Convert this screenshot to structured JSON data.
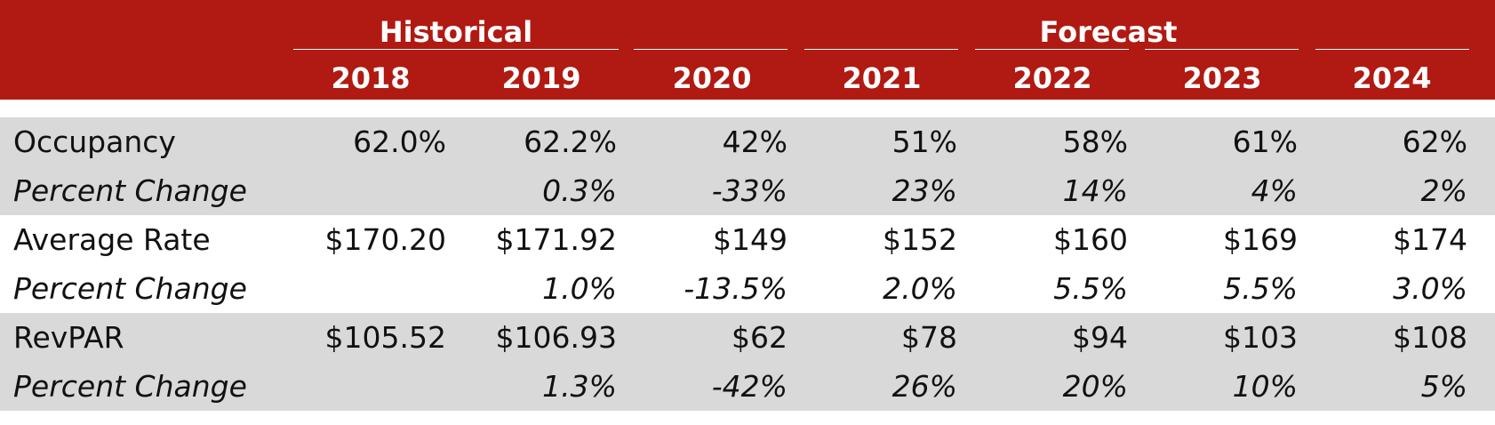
{
  "header": {
    "groups": {
      "historical": "Historical",
      "forecast": "Forecast"
    },
    "years": [
      "2018",
      "2019",
      "2020",
      "2021",
      "2022",
      "2023",
      "2024"
    ]
  },
  "rows": [
    {
      "label": "Occupancy",
      "italic": false,
      "shaded": true,
      "values": [
        "62.0%",
        "62.2%",
        "42%",
        "51%",
        "58%",
        "61%",
        "62%"
      ]
    },
    {
      "label": "Percent Change",
      "italic": true,
      "shaded": true,
      "values": [
        "",
        "0.3%",
        "-33%",
        "23%",
        "14%",
        "4%",
        "2%"
      ]
    },
    {
      "label": "Average Rate",
      "italic": false,
      "shaded": false,
      "values": [
        "$170.20",
        "$171.92",
        "$149",
        "$152",
        "$160",
        "$169",
        "$174"
      ]
    },
    {
      "label": "Percent Change",
      "italic": true,
      "shaded": false,
      "values": [
        "",
        "1.0%",
        "-13.5%",
        "2.0%",
        "5.5%",
        "5.5%",
        "3.0%"
      ]
    },
    {
      "label": "RevPAR",
      "italic": false,
      "shaded": true,
      "values": [
        "$105.52",
        "$106.93",
        "$62",
        "$78",
        "$94",
        "$103",
        "$108"
      ]
    },
    {
      "label": "Percent Change",
      "italic": true,
      "shaded": true,
      "values": [
        "",
        "1.3%",
        "-42%",
        "26%",
        "20%",
        "10%",
        "5%"
      ]
    }
  ],
  "colors": {
    "header_bg": "#b01a12",
    "header_text": "#ffffff",
    "shade": "#d9d9d9",
    "text": "#111111"
  }
}
